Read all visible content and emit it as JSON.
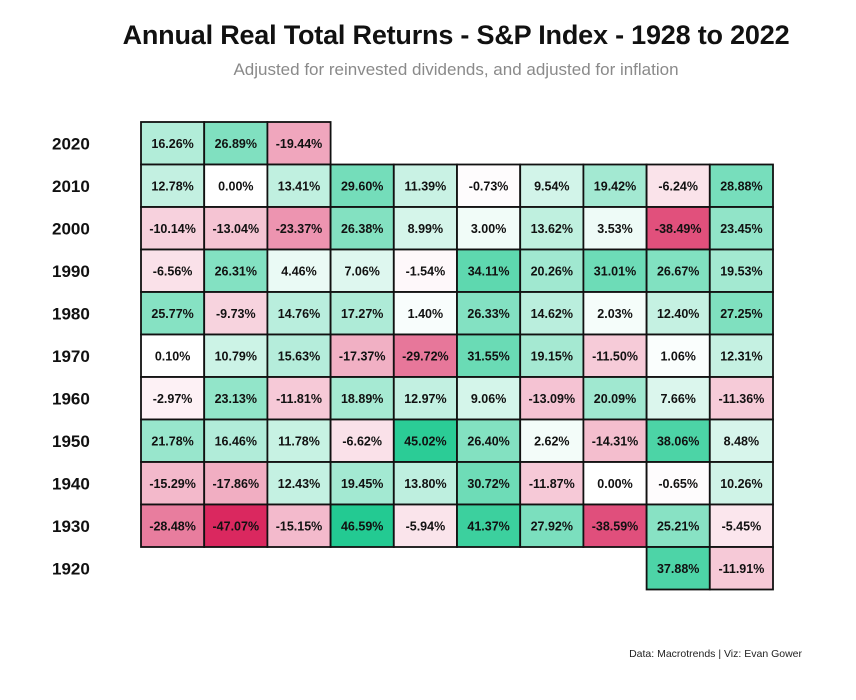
{
  "title": "Annual Real Total Returns - S&P Index - 1928 to 2022",
  "subtitle": "Adjusted for reinvested dividends, and adjusted for inflation",
  "caption": "Data: Macrotrends | Viz: Evan Gower",
  "colors": {
    "positive": "#1fc990",
    "negative": "#d9245c",
    "neutral": "#ffffff",
    "border": "#111111"
  },
  "chart_data": {
    "type": "heatmap",
    "title": "Annual Real Total Returns - S&P Index - 1928 to 2022",
    "subtitle": "Adjusted for reinvested dividends, and adjusted for inflation",
    "y_categories": [
      "2020",
      "2010",
      "2000",
      "1990",
      "1980",
      "1970",
      "1960",
      "1950",
      "1940",
      "1930",
      "1920"
    ],
    "x_categories": [
      "0",
      "1",
      "2",
      "3",
      "4",
      "5",
      "6",
      "7",
      "8",
      "9"
    ],
    "x_axis_shown": false,
    "rows": [
      {
        "decade": "2020",
        "values": [
          16.26,
          26.89,
          -19.44,
          null,
          null,
          null,
          null,
          null,
          null,
          null
        ]
      },
      {
        "decade": "2010",
        "values": [
          12.78,
          0.0,
          13.41,
          29.6,
          11.39,
          -0.73,
          9.54,
          19.42,
          -6.24,
          28.88
        ]
      },
      {
        "decade": "2000",
        "values": [
          -10.14,
          -13.04,
          -23.37,
          26.38,
          8.99,
          3.0,
          13.62,
          3.53,
          -38.49,
          23.45
        ]
      },
      {
        "decade": "1990",
        "values": [
          -6.56,
          26.31,
          4.46,
          7.06,
          -1.54,
          34.11,
          20.26,
          31.01,
          26.67,
          19.53
        ]
      },
      {
        "decade": "1980",
        "values": [
          25.77,
          -9.73,
          14.76,
          17.27,
          1.4,
          26.33,
          14.62,
          2.03,
          12.4,
          27.25
        ]
      },
      {
        "decade": "1970",
        "values": [
          0.1,
          10.79,
          15.63,
          -17.37,
          -29.72,
          31.55,
          19.15,
          -11.5,
          1.06,
          12.31
        ]
      },
      {
        "decade": "1960",
        "values": [
          -2.97,
          23.13,
          -11.81,
          18.89,
          12.97,
          9.06,
          -13.09,
          20.09,
          7.66,
          -11.36
        ]
      },
      {
        "decade": "1950",
        "values": [
          21.78,
          16.46,
          11.78,
          -6.62,
          45.02,
          26.4,
          2.62,
          -14.31,
          38.06,
          8.48
        ]
      },
      {
        "decade": "1940",
        "values": [
          -15.29,
          -17.86,
          12.43,
          19.45,
          13.8,
          30.72,
          -11.87,
          0.0,
          -0.65,
          10.26
        ]
      },
      {
        "decade": "1930",
        "values": [
          -28.48,
          -47.07,
          -15.15,
          46.59,
          -5.94,
          41.37,
          27.92,
          -38.59,
          25.21,
          -5.45
        ]
      },
      {
        "decade": "1920",
        "values": [
          null,
          null,
          null,
          null,
          null,
          null,
          null,
          null,
          37.88,
          -11.91
        ]
      }
    ],
    "color_scale": {
      "min": -47.07,
      "mid": 0,
      "max": 46.59
    },
    "value_format": "percent, 2 decimals"
  }
}
